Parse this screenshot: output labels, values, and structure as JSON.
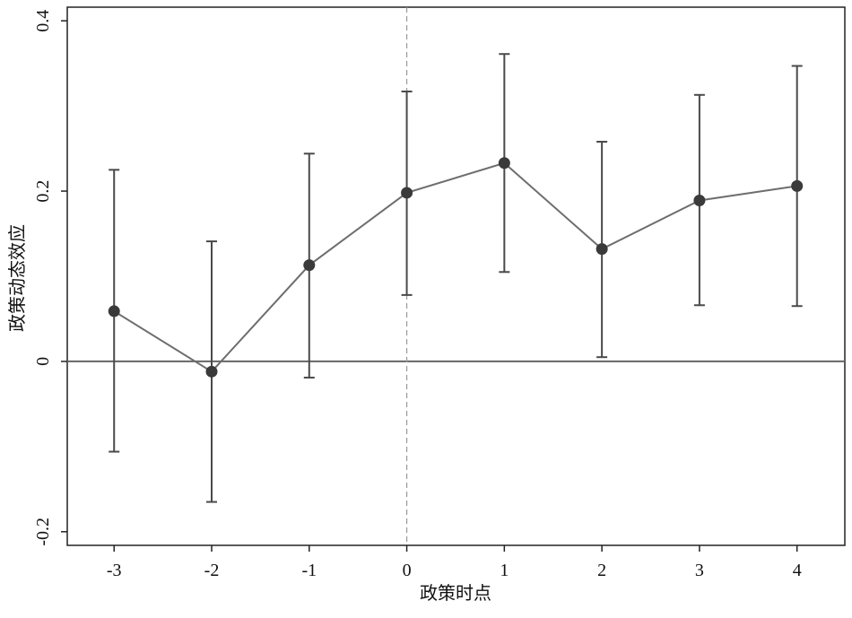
{
  "chart_data": {
    "type": "errorbar-line",
    "xlabel": "政策时点",
    "ylabel": "政策动态效应",
    "x": [
      -3,
      -2,
      -1,
      0,
      1,
      2,
      3,
      4
    ],
    "values": [
      0.059,
      -0.012,
      0.113,
      0.198,
      0.233,
      0.132,
      0.189,
      0.206
    ],
    "lower": [
      -0.106,
      -0.165,
      -0.019,
      0.078,
      0.105,
      0.005,
      0.066,
      0.065
    ],
    "upper": [
      0.225,
      0.141,
      0.244,
      0.317,
      0.361,
      0.258,
      0.313,
      0.347
    ],
    "line_color": "#6e6e6e",
    "marker_color": "#3a3a3a",
    "errorbar_color": "#4a4a4a",
    "xlim": [
      -3.48,
      4.49
    ],
    "ylim": [
      -0.216,
      0.416
    ],
    "xticks": [
      -3,
      -2,
      -1,
      0,
      1,
      2,
      3,
      4
    ],
    "yticks": [
      -0.2,
      0,
      0.2,
      0.4
    ],
    "hline": 0,
    "vline": 0
  }
}
